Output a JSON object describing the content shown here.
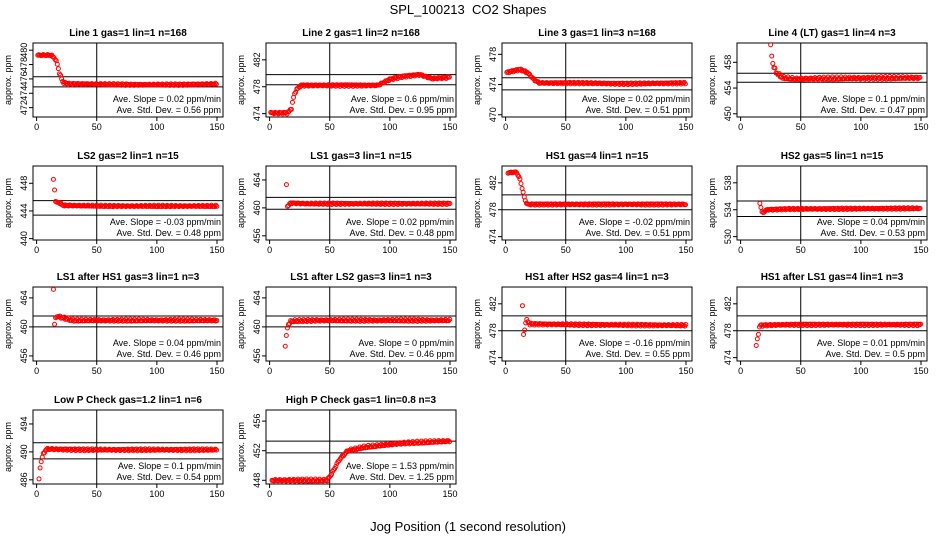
{
  "page": {
    "title": "SPL_100213  CO2 Shapes",
    "xlabel": "Jog Position (1 second resolution)"
  },
  "style": {
    "marker_color": "#ff0000",
    "line_color": "#000000"
  },
  "chart_data": [
    {
      "type": "scatter",
      "title": "Line 1 gas=1 lin=1 n=168",
      "ylabel": "approx. ppm",
      "xlim": [
        -3,
        155
      ],
      "ylim": [
        470.7,
        481
      ],
      "xticks": [
        0,
        50,
        100,
        150
      ],
      "yticks": [
        472,
        474,
        476,
        478,
        480
      ],
      "hlines": [
        476.3,
        474.9
      ],
      "vline": 50,
      "slope_text": "Ave. Slope = 0.02 ppm/min",
      "std_text": "Ave. Std. Dev. = 0.56 ppm",
      "series": [
        {
          "shape": [
            [
              1,
              479.3
            ],
            [
              12,
              479.3
            ],
            [
              15,
              478.9
            ],
            [
              17,
              478.2
            ],
            [
              19,
              476.8
            ],
            [
              22,
              475.5
            ],
            [
              26,
              475.3
            ],
            [
              40,
              475.3
            ],
            [
              80,
              475.2
            ],
            [
              120,
              475.2
            ],
            [
              150,
              475.3
            ]
          ],
          "noise": 0.12
        }
      ]
    },
    {
      "type": "scatter",
      "title": "Line 2 gas=1 lin=2 n=168",
      "ylabel": "approx. ppm",
      "xlim": [
        -3,
        155
      ],
      "ylim": [
        473.5,
        484.5
      ],
      "xticks": [
        0,
        50,
        100,
        150
      ],
      "yticks": [
        474,
        478,
        482
      ],
      "hlines": [
        479.8,
        478.3
      ],
      "vline": 50,
      "slope_text": "Ave. Slope = 0.6 ppm/min",
      "std_text": "Ave. Std. Dev. = 0.95 ppm",
      "series": [
        {
          "shape": [
            [
              1,
              474.1
            ],
            [
              15,
              474.1
            ],
            [
              18,
              474.7
            ],
            [
              20,
              476.5
            ],
            [
              22,
              477.5
            ],
            [
              26,
              478.2
            ],
            [
              90,
              478.2
            ],
            [
              100,
              479.1
            ],
            [
              110,
              479.5
            ],
            [
              125,
              479.8
            ],
            [
              135,
              479.2
            ],
            [
              150,
              479.4
            ]
          ],
          "noise": 0.15
        }
      ]
    },
    {
      "type": "scatter",
      "title": "Line 3 gas=1 lin=3 n=168",
      "ylabel": "approx. ppm",
      "xlim": [
        -3,
        155
      ],
      "ylim": [
        469.7,
        479.5
      ],
      "xticks": [
        0,
        50,
        100,
        150
      ],
      "yticks": [
        470,
        474,
        478
      ],
      "hlines": [
        474.9,
        473.3
      ],
      "vline": 50,
      "slope_text": "Ave. Slope = 0.02 ppm/min",
      "std_text": "Ave. Std. Dev. = 0.51 ppm",
      "series": [
        {
          "shape": [
            [
              1,
              475.6
            ],
            [
              12,
              476.0
            ],
            [
              18,
              475.6
            ],
            [
              24,
              474.6
            ],
            [
              28,
              474.2
            ],
            [
              60,
              474.2
            ],
            [
              100,
              474.1
            ],
            [
              150,
              474.2
            ]
          ],
          "noise": 0.12
        }
      ]
    },
    {
      "type": "scatter",
      "title": "Line 4 (LT) gas=1 lin=4 n=3",
      "ylabel": "approx. ppm",
      "xlim": [
        -3,
        155
      ],
      "ylim": [
        449.5,
        461
      ],
      "xticks": [
        0,
        50,
        100,
        150
      ],
      "yticks": [
        450,
        454,
        458
      ],
      "hlines": [
        456.3,
        454.9
      ],
      "vline": 50,
      "slope_text": "Ave. Slope = 0.1 ppm/min",
      "std_text": "Ave. Std. Dev. = 0.47 ppm",
      "series": [
        {
          "shape": [
            [
              25,
              460.5
            ],
            [
              27,
              457.5
            ],
            [
              30,
              456.3
            ],
            [
              35,
              455.6
            ],
            [
              45,
              455.4
            ],
            [
              80,
              455.5
            ],
            [
              150,
              455.6
            ]
          ],
          "noise": 0.25
        }
      ]
    },
    {
      "type": "scatter",
      "title": "LS2 gas=2 lin=1 n=15",
      "ylabel": "approx. ppm",
      "xlim": [
        -3,
        155
      ],
      "ylim": [
        439.8,
        450.5
      ],
      "xticks": [
        0,
        50,
        100,
        150
      ],
      "yticks": [
        440,
        444,
        448
      ],
      "hlines": [
        445.5,
        443.4
      ],
      "vline": 50,
      "slope_text": "Ave. Slope = -0.03 ppm/min",
      "std_text": "Ave. Std. Dev. = 0.48 ppm",
      "series": [
        {
          "shape": [
            [
              14,
              448.6
            ],
            [
              16,
              445.1
            ],
            [
              18,
              445.3
            ],
            [
              22,
              444.8
            ],
            [
              60,
              444.7
            ],
            [
              150,
              444.7
            ]
          ],
          "noise": 0.12
        }
      ]
    },
    {
      "type": "scatter",
      "title": "LS1 gas=3 lin=1 n=15",
      "ylabel": "approx. ppm",
      "xlim": [
        -3,
        155
      ],
      "ylim": [
        455.4,
        466
      ],
      "xticks": [
        0,
        50,
        100,
        150
      ],
      "yticks": [
        456,
        460,
        464
      ],
      "hlines": [
        461.5,
        459.8
      ],
      "vline": 50,
      "slope_text": "Ave. Slope = 0.02 ppm/min",
      "std_text": "Ave. Std. Dev. = 0.48 ppm",
      "series": [
        {
          "shape": [
            [
              14,
              463.3
            ],
            [
              15,
              460.0
            ],
            [
              17,
              460.7
            ],
            [
              30,
              460.6
            ],
            [
              150,
              460.6
            ]
          ],
          "noise": 0.12
        }
      ]
    },
    {
      "type": "scatter",
      "title": "HS1 gas=4 lin=1 n=15",
      "ylabel": "approx. ppm",
      "xlim": [
        -3,
        155
      ],
      "ylim": [
        473.5,
        484.5
      ],
      "xticks": [
        0,
        50,
        100,
        150
      ],
      "yticks": [
        474,
        478,
        482
      ],
      "hlines": [
        480.2,
        478.0
      ],
      "vline": 50,
      "slope_text": "Ave. Slope = -0.02 ppm/min",
      "std_text": "Ave. Std. Dev. = 0.51 ppm",
      "series": [
        {
          "shape": [
            [
              2,
              483.5
            ],
            [
              9,
              483.6
            ],
            [
              12,
              482.5
            ],
            [
              14,
              481.0
            ],
            [
              16,
              479.5
            ],
            [
              18,
              478.8
            ],
            [
              40,
              478.8
            ],
            [
              150,
              478.8
            ]
          ],
          "noise": 0.12
        }
      ]
    },
    {
      "type": "scatter",
      "title": "HS2 gas=5 lin=1 n=15",
      "ylabel": "approx. ppm",
      "xlim": [
        -3,
        155
      ],
      "ylim": [
        529.5,
        540.5
      ],
      "xticks": [
        0,
        50,
        100,
        150
      ],
      "yticks": [
        530,
        534,
        538
      ],
      "hlines": [
        535.3,
        533.0
      ],
      "vline": 50,
      "slope_text": "Ave. Slope = 0.04 ppm/min",
      "std_text": "Ave. Std. Dev. = 0.53 ppm",
      "series": [
        {
          "shape": [
            [
              16,
              535.0
            ],
            [
              18,
              533.5
            ],
            [
              22,
              534.0
            ],
            [
              40,
              534.1
            ],
            [
              150,
              534.2
            ]
          ],
          "noise": 0.12
        }
      ]
    },
    {
      "type": "scatter",
      "title": "LS1 after HS1 gas=3 lin=1 n=3",
      "ylabel": "approx. ppm",
      "xlim": [
        -3,
        155
      ],
      "ylim": [
        455.3,
        465.5
      ],
      "xticks": [
        0,
        50,
        100,
        150
      ],
      "yticks": [
        456,
        460,
        464
      ],
      "hlines": [
        461.5,
        460.0
      ],
      "vline": 50,
      "slope_text": "Ave. Slope = 0.04 ppm/min",
      "std_text": "Ave. Std. Dev. = 0.46 ppm",
      "series": [
        {
          "shape": [
            [
              14,
              465.2
            ],
            [
              15,
              459.8
            ],
            [
              16,
              461.5
            ],
            [
              30,
              460.9
            ],
            [
              150,
              460.9
            ]
          ],
          "noise": 0.18
        }
      ]
    },
    {
      "type": "scatter",
      "title": "LS1 after LS2 gas=3 lin=1 n=3",
      "ylabel": "approx. ppm",
      "xlim": [
        -3,
        155
      ],
      "ylim": [
        455.3,
        465.5
      ],
      "xticks": [
        0,
        50,
        100,
        150
      ],
      "yticks": [
        456,
        460,
        464
      ],
      "hlines": [
        461.5,
        460.0
      ],
      "vline": 50,
      "slope_text": "Ave. Slope = 0 ppm/min",
      "std_text": "Ave. Std. Dev. = 0.46 ppm",
      "series": [
        {
          "shape": [
            [
              13,
              457.4
            ],
            [
              15,
              460.2
            ],
            [
              18,
              460.8
            ],
            [
              40,
              460.9
            ],
            [
              150,
              460.9
            ]
          ],
          "noise": 0.18
        }
      ]
    },
    {
      "type": "scatter",
      "title": "HS1 after HS2 gas=4 lin=1 n=3",
      "ylabel": "approx. ppm",
      "xlim": [
        -3,
        155
      ],
      "ylim": [
        473.5,
        484.5
      ],
      "xticks": [
        0,
        50,
        100,
        150
      ],
      "yticks": [
        474,
        478,
        482
      ],
      "hlines": [
        480.2,
        478.0
      ],
      "vline": 50,
      "slope_text": "Ave. Slope = -0.16 ppm/min",
      "std_text": "Ave. Std. Dev. = 0.55 ppm",
      "series": [
        {
          "shape": [
            [
              14,
              481.6
            ],
            [
              15,
              477.0
            ],
            [
              17,
              479.7
            ],
            [
              20,
              479.0
            ],
            [
              60,
              478.9
            ],
            [
              150,
              478.8
            ]
          ],
          "noise": 0.15
        }
      ]
    },
    {
      "type": "scatter",
      "title": "HS1 after LS1 gas=4 lin=1 n=3",
      "ylabel": "approx. ppm",
      "xlim": [
        -3,
        155
      ],
      "ylim": [
        473.5,
        484.5
      ],
      "xticks": [
        0,
        50,
        100,
        150
      ],
      "yticks": [
        474,
        478,
        482
      ],
      "hlines": [
        480.2,
        478.0
      ],
      "vline": 50,
      "slope_text": "Ave. Slope = 0.01 ppm/min",
      "std_text": "Ave. Std. Dev. = 0.5 ppm",
      "series": [
        {
          "shape": [
            [
              13,
              475.8
            ],
            [
              16,
              478.8
            ],
            [
              40,
              478.9
            ],
            [
              150,
              478.9
            ]
          ],
          "noise": 0.15
        }
      ]
    },
    {
      "type": "scatter",
      "title": "Low P Check gas=1.2 lin=1 n=6",
      "ylabel": "approx. ppm",
      "xlim": [
        -3,
        155
      ],
      "ylim": [
        485.4,
        496
      ],
      "xticks": [
        0,
        50,
        100,
        150
      ],
      "yticks": [
        486,
        490,
        494
      ],
      "hlines": [
        491.3,
        489.0
      ],
      "vline": 50,
      "slope_text": "Ave. Slope = 0.1 ppm/min",
      "std_text": "Ave. Std. Dev. = 0.54 ppm",
      "series": [
        {
          "shape": [
            [
              2,
              486.0
            ],
            [
              3,
              488.0
            ],
            [
              5,
              489.5
            ],
            [
              8,
              490.4
            ],
            [
              40,
              490.3
            ],
            [
              150,
              490.3
            ]
          ],
          "noise": 0.15
        }
      ]
    },
    {
      "type": "scatter",
      "title": "High P Check gas=1 lin=0.8 n=3",
      "ylabel": "approx. ppm",
      "xlim": [
        -3,
        155
      ],
      "ylim": [
        447.5,
        457.5
      ],
      "xticks": [
        0,
        50,
        100,
        150
      ],
      "yticks": [
        448,
        452,
        456
      ],
      "hlines": [
        453.3,
        451.7
      ],
      "vline": 50,
      "slope_text": "Ave. Slope = 1.53 ppm/min",
      "std_text": "Ave. Std. Dev. = 1.25 ppm",
      "series": [
        {
          "shape": [
            [
              2,
              448.0
            ],
            [
              8,
              448.0
            ],
            [
              48,
              448.0
            ],
            [
              52,
              449.0
            ],
            [
              58,
              450.8
            ],
            [
              65,
              452.0
            ],
            [
              80,
              452.5
            ],
            [
              110,
              453.0
            ],
            [
              150,
              453.3
            ]
          ],
          "noise": 0.18
        }
      ]
    }
  ]
}
